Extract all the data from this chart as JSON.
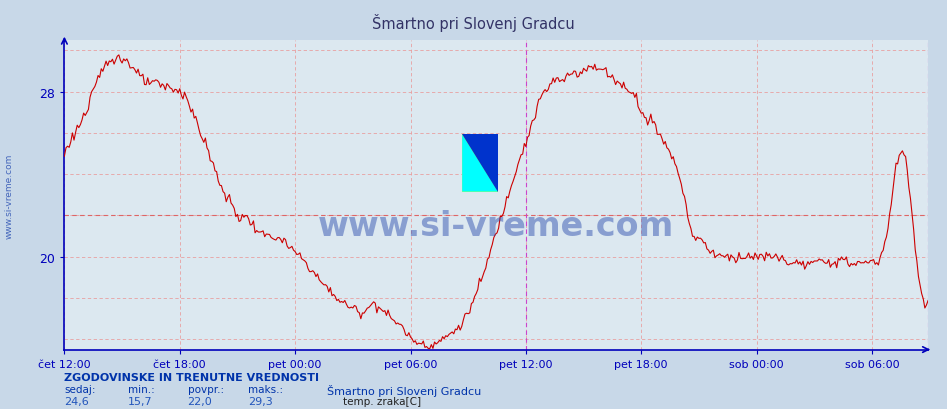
{
  "title": "Šmartno pri Slovenj Gradcu",
  "bg_color": "#c8d8e8",
  "plot_bg_color": "#dce8f0",
  "line_color": "#cc0000",
  "grid_color": "#e8a0a0",
  "axis_color": "#0000bb",
  "avg_line_color": "#dd6666",
  "vline_color": "#cc44cc",
  "ymin": 15.5,
  "ymax": 30.5,
  "xlabel_color": "#2244aa",
  "ylabel_color": "#2244aa",
  "xtick_labels": [
    "čet 12:00",
    "čet 18:00",
    "pet 00:00",
    "pet 06:00",
    "pet 12:00",
    "pet 18:00",
    "sob 00:00",
    "sob 06:00"
  ],
  "avg_value": 22.0,
  "min_value": 15.7,
  "max_value": 29.3,
  "current_value": 24.6,
  "watermark": "www.si-vreme.com",
  "watermark_color": "#2244aa",
  "sidebar_text": "www.si-vreme.com",
  "sidebar_color": "#4466bb",
  "stats_label": "ZGODOVINSKE IN TRENUTNE VREDNOSTI",
  "stats_color": "#0033aa",
  "legend_label": "temp. zraka[C]",
  "legend_color": "#cc0000",
  "station_label": "Šmartno pri Slovenj Gradcu"
}
